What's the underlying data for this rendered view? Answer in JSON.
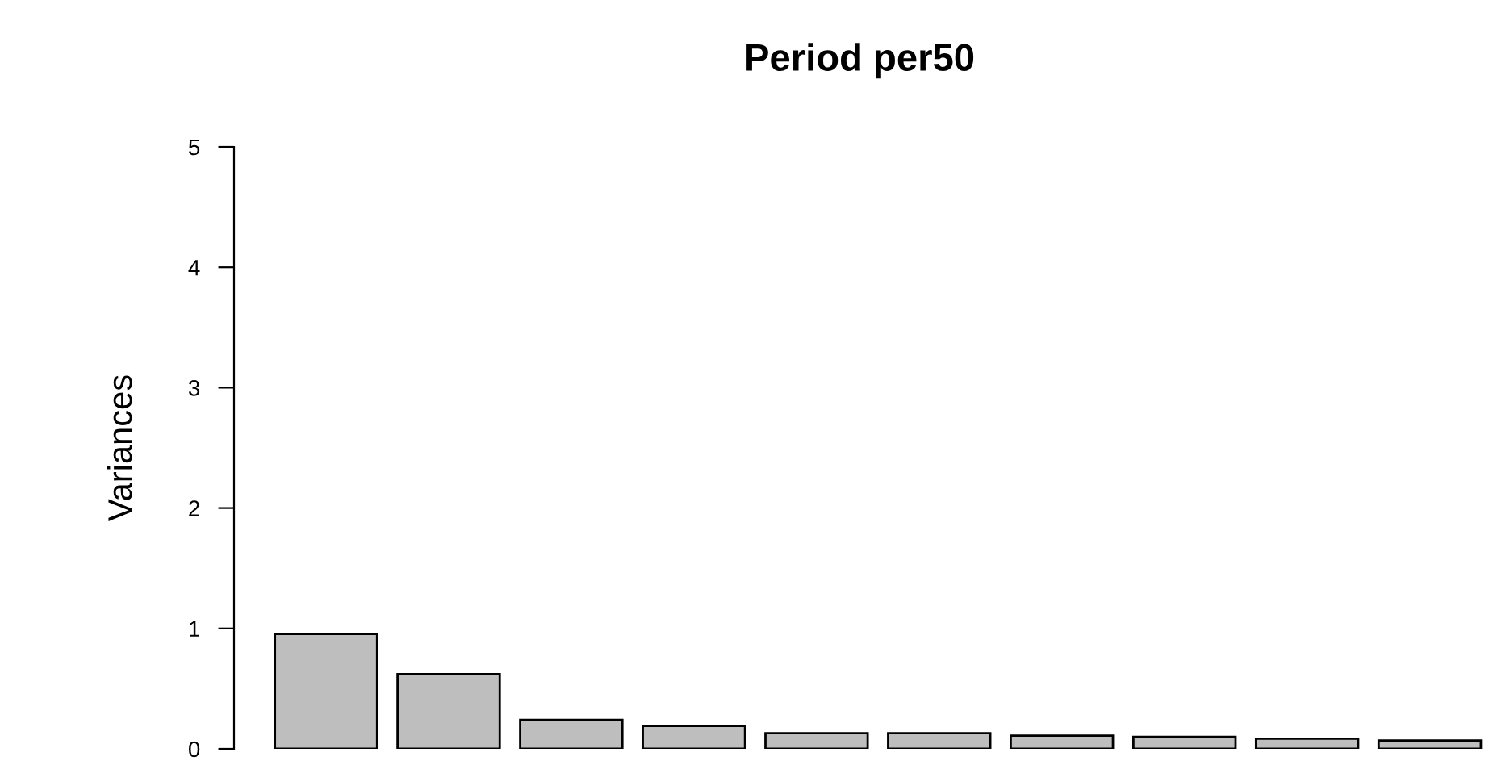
{
  "chart_data": {
    "type": "bar",
    "title": "Period per50",
    "ylabel": "Variances",
    "categories": [
      null,
      null,
      null,
      null,
      null,
      null,
      null,
      null,
      null,
      null
    ],
    "values": [
      0.955,
      0.62,
      0.24,
      0.19,
      0.13,
      0.13,
      0.11,
      0.1,
      0.085,
      0.07
    ],
    "color": "#bebebe",
    "ylim": [
      0,
      5
    ],
    "yticks": [
      0,
      1,
      2,
      3,
      4,
      5
    ],
    "grid": false,
    "legend": false
  }
}
